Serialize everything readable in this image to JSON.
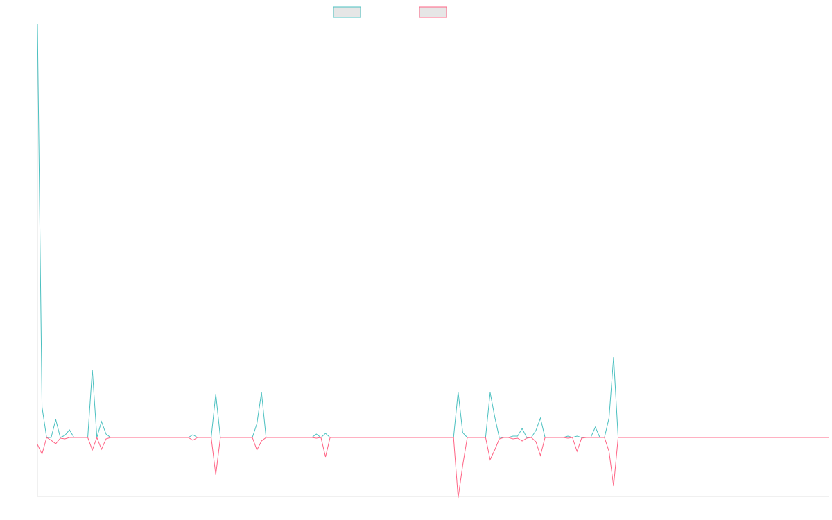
{
  "chart_data": {
    "type": "line",
    "series": [
      {
        "color": "#4bc0c0",
        "values": [
          596,
          44,
          0,
          0,
          26,
          0,
          3,
          11,
          0,
          0,
          0,
          0,
          98,
          0,
          23,
          5,
          0,
          0,
          0,
          0,
          0,
          0,
          0,
          0,
          0,
          0,
          0,
          0,
          0,
          0,
          0,
          0,
          0,
          0,
          4,
          0,
          0,
          0,
          0,
          63,
          0,
          0,
          0,
          0,
          0,
          0,
          0,
          0,
          20,
          65,
          0,
          0,
          0,
          0,
          0,
          0,
          0,
          0,
          0,
          0,
          0,
          5,
          0,
          6,
          0,
          0,
          0,
          0,
          0,
          0,
          0,
          0,
          0,
          0,
          0,
          0,
          0,
          0,
          0,
          0,
          0,
          0,
          0,
          0,
          0,
          0,
          0,
          0,
          0,
          0,
          0,
          0,
          66,
          7,
          0,
          0,
          0,
          0,
          0,
          65,
          30,
          0,
          0,
          0,
          2,
          2,
          13,
          0,
          0,
          10,
          28,
          0,
          0,
          0,
          0,
          0,
          2,
          0,
          2,
          0,
          0,
          0,
          15,
          0,
          0,
          28,
          116,
          0,
          0,
          0,
          0,
          0,
          0,
          0,
          0,
          0,
          0,
          0,
          0,
          0,
          0,
          0,
          0,
          0,
          0,
          0,
          0,
          0,
          0,
          0,
          0,
          0,
          0,
          0,
          0,
          0,
          0,
          0,
          0,
          0,
          0,
          0,
          0,
          0,
          0,
          0,
          0,
          0,
          0,
          0,
          0,
          0,
          0,
          0
        ]
      },
      {
        "color": "#ff6384",
        "values": [
          -10,
          -24,
          0,
          -4,
          -9,
          -1,
          -2,
          0,
          0,
          0,
          0,
          0,
          -18,
          0,
          -17,
          -2,
          0,
          0,
          0,
          0,
          0,
          0,
          0,
          0,
          0,
          0,
          0,
          0,
          0,
          0,
          0,
          0,
          0,
          0,
          -4,
          0,
          0,
          0,
          0,
          -54,
          0,
          0,
          0,
          0,
          0,
          0,
          0,
          0,
          -18,
          -5,
          0,
          0,
          0,
          0,
          0,
          0,
          0,
          0,
          0,
          0,
          0,
          -1,
          0,
          -28,
          0,
          0,
          0,
          0,
          0,
          0,
          0,
          0,
          0,
          0,
          0,
          0,
          0,
          0,
          0,
          0,
          0,
          0,
          0,
          0,
          0,
          0,
          0,
          0,
          0,
          0,
          0,
          0,
          -87,
          -40,
          0,
          0,
          0,
          0,
          0,
          -32,
          -18,
          -2,
          0,
          0,
          -2,
          -1,
          -5,
          -1,
          0,
          -6,
          -26,
          0,
          0,
          0,
          0,
          0,
          -1,
          0,
          -20,
          -1,
          0,
          0,
          0,
          0,
          0,
          -20,
          -70,
          0,
          0,
          0,
          0,
          0,
          0,
          0,
          0,
          0,
          0,
          0,
          0,
          0,
          0,
          0,
          0,
          0,
          0,
          0,
          0,
          0,
          0,
          0,
          0,
          0,
          0,
          0,
          0,
          0,
          0,
          0,
          0,
          0,
          0,
          0,
          0,
          0,
          0,
          0,
          0,
          0,
          0,
          0,
          0,
          0,
          0,
          0
        ]
      }
    ],
    "ylim": [
      -85,
      596
    ]
  }
}
